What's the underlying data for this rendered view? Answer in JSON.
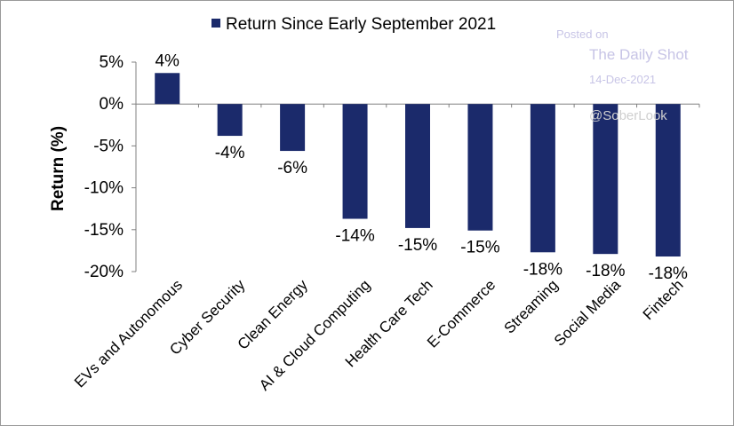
{
  "chart_data": {
    "type": "bar",
    "categories": [
      "EVs and Autonomous",
      "Cyber Security",
      "Clean Energy",
      "AI & Cloud Computing",
      "Health Care Tech",
      "E-Commerce",
      "Streaming",
      "Social Media",
      "Fintech"
    ],
    "series": [
      {
        "name": "Return Since Early September 2021",
        "values": [
          3.7,
          -3.8,
          -5.6,
          -13.7,
          -14.8,
          -15.1,
          -17.7,
          -17.9,
          -18.2
        ],
        "labels": [
          "4%",
          "-4%",
          "-6%",
          "-14%",
          "-15%",
          "-15%",
          "-18%",
          "-18%",
          "-18%"
        ]
      }
    ],
    "ylabel": "Return (%)",
    "ylim": [
      -20,
      5
    ],
    "yticks": [
      5,
      0,
      -5,
      -10,
      -15,
      -20
    ],
    "ytick_labels": [
      "5%",
      "0%",
      "-5%",
      "-10%",
      "-15%",
      "-20%"
    ],
    "grid": false,
    "legend_position": "top",
    "bar_color": "#1b2a6b"
  },
  "watermark": {
    "posted_on": "Posted on",
    "source": "The Daily Shot",
    "date": "14-Dec-2021",
    "credit": "@SoberLook"
  }
}
